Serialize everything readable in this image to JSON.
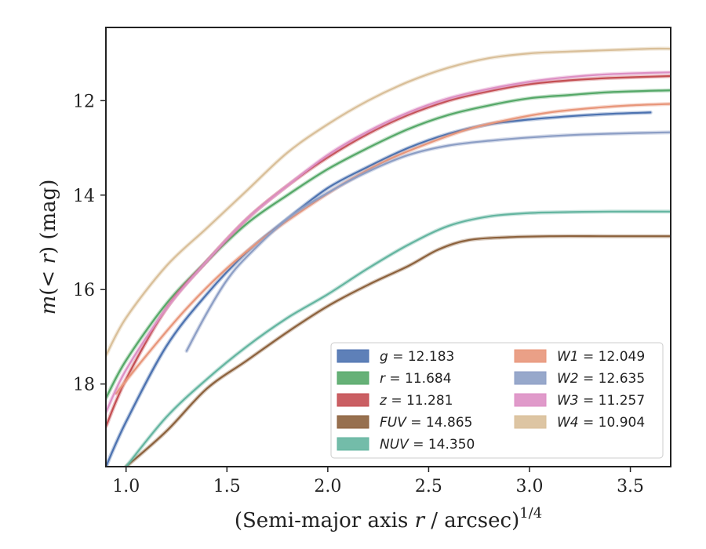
{
  "chart_data": {
    "type": "line",
    "title": "",
    "xlabel": "(Semi-major axis r / arcsec)^1/4",
    "xlabel_parts": {
      "main": "(Semi-major axis ",
      "var": "r",
      "rest": " / arcsec)",
      "sup": "1/4"
    },
    "ylabel": "m(<r) (mag)",
    "ylabel_parts": {
      "var1": "m",
      "mid": "(< ",
      "var2": "r",
      "tail": ") (mag)"
    },
    "xlim": [
      0.9,
      3.7
    ],
    "ylim": [
      19.75,
      10.45
    ],
    "y_inverted": true,
    "xticks": [
      1.0,
      1.5,
      2.0,
      2.5,
      3.0,
      3.5
    ],
    "xtick_labels": [
      "1.0",
      "1.5",
      "2.0",
      "2.5",
      "3.0",
      "3.5"
    ],
    "yticks": [
      12,
      14,
      16,
      18
    ],
    "ytick_labels": [
      "12",
      "14",
      "16",
      "18"
    ],
    "grid": false,
    "legend_placement": "lower-right",
    "series": [
      {
        "name": "g",
        "value": "12.183",
        "color": "#4c72b0",
        "x": [
          0.9,
          1.0,
          1.2,
          1.4,
          1.6,
          1.8,
          2.0,
          2.2,
          2.4,
          2.6,
          2.8,
          3.0,
          3.2,
          3.4,
          3.6
        ],
        "y": [
          19.75,
          18.8,
          17.2,
          16.1,
          15.2,
          14.5,
          13.85,
          13.4,
          13.0,
          12.7,
          12.5,
          12.4,
          12.33,
          12.28,
          12.25
        ]
      },
      {
        "name": "r",
        "value": "11.684",
        "color": "#55a868",
        "x": [
          0.9,
          1.0,
          1.2,
          1.4,
          1.6,
          1.8,
          2.0,
          2.2,
          2.4,
          2.6,
          2.8,
          3.0,
          3.2,
          3.4,
          3.7
        ],
        "y": [
          18.3,
          17.5,
          16.3,
          15.4,
          14.6,
          14.0,
          13.45,
          13.0,
          12.6,
          12.3,
          12.1,
          11.95,
          11.88,
          11.82,
          11.78
        ]
      },
      {
        "name": "z",
        "value": "11.281",
        "color": "#c44e52",
        "x": [
          0.9,
          1.0,
          1.2,
          1.4,
          1.6,
          1.8,
          2.0,
          2.2,
          2.4,
          2.6,
          2.8,
          3.0,
          3.2,
          3.4,
          3.7
        ],
        "y": [
          18.9,
          17.9,
          16.4,
          15.4,
          14.5,
          13.8,
          13.2,
          12.7,
          12.3,
          12.0,
          11.8,
          11.65,
          11.57,
          11.52,
          11.48
        ]
      },
      {
        "name": "FUV",
        "value": "14.865",
        "color": "#8c613c",
        "x": [
          1.0,
          1.2,
          1.4,
          1.6,
          1.8,
          2.0,
          2.2,
          2.4,
          2.55,
          2.7,
          2.9,
          3.1,
          3.4,
          3.7
        ],
        "y": [
          19.75,
          19.0,
          18.1,
          17.5,
          16.9,
          16.35,
          15.9,
          15.5,
          15.15,
          14.95,
          14.89,
          14.87,
          14.87,
          14.87
        ]
      },
      {
        "name": "NUV",
        "value": "14.350",
        "color": "#64b5a0",
        "x": [
          1.0,
          1.2,
          1.4,
          1.6,
          1.8,
          2.0,
          2.2,
          2.4,
          2.6,
          2.8,
          3.0,
          3.2,
          3.4,
          3.7
        ],
        "y": [
          19.75,
          18.7,
          17.9,
          17.2,
          16.6,
          16.1,
          15.55,
          15.05,
          14.65,
          14.45,
          14.38,
          14.36,
          14.35,
          14.35
        ]
      },
      {
        "name": "W1",
        "value": "12.049",
        "color": "#e8967a",
        "x": [
          0.95,
          1.1,
          1.3,
          1.5,
          1.7,
          1.9,
          2.1,
          2.3,
          2.5,
          2.7,
          2.9,
          3.1,
          3.3,
          3.5,
          3.7
        ],
        "y": [
          18.2,
          17.4,
          16.4,
          15.55,
          14.85,
          14.25,
          13.7,
          13.25,
          12.9,
          12.6,
          12.4,
          12.25,
          12.16,
          12.1,
          12.07
        ]
      },
      {
        "name": "W2",
        "value": "12.635",
        "color": "#8c9ec5",
        "x": [
          1.3,
          1.4,
          1.5,
          1.6,
          1.8,
          2.0,
          2.2,
          2.4,
          2.6,
          2.8,
          3.0,
          3.2,
          3.4,
          3.7
        ],
        "y": [
          17.3,
          16.5,
          15.8,
          15.3,
          14.5,
          13.95,
          13.5,
          13.15,
          12.95,
          12.85,
          12.78,
          12.73,
          12.7,
          12.67
        ]
      },
      {
        "name": "W3",
        "value": "11.257",
        "color": "#dd8fc4",
        "x": [
          0.9,
          1.0,
          1.2,
          1.4,
          1.6,
          1.8,
          2.0,
          2.2,
          2.4,
          2.6,
          2.8,
          3.0,
          3.2,
          3.4,
          3.7
        ],
        "y": [
          18.6,
          17.7,
          16.4,
          15.4,
          14.5,
          13.8,
          13.15,
          12.65,
          12.25,
          11.95,
          11.75,
          11.6,
          11.5,
          11.44,
          11.4
        ]
      },
      {
        "name": "W4",
        "value": "10.904",
        "color": "#d9bf99",
        "x": [
          0.9,
          1.0,
          1.2,
          1.4,
          1.6,
          1.8,
          2.0,
          2.2,
          2.4,
          2.6,
          2.8,
          3.0,
          3.2,
          3.4,
          3.6,
          3.7
        ],
        "y": [
          17.4,
          16.6,
          15.5,
          14.7,
          13.9,
          13.1,
          12.5,
          12.0,
          11.6,
          11.3,
          11.1,
          11.0,
          10.96,
          10.93,
          10.9,
          10.9
        ]
      }
    ]
  }
}
